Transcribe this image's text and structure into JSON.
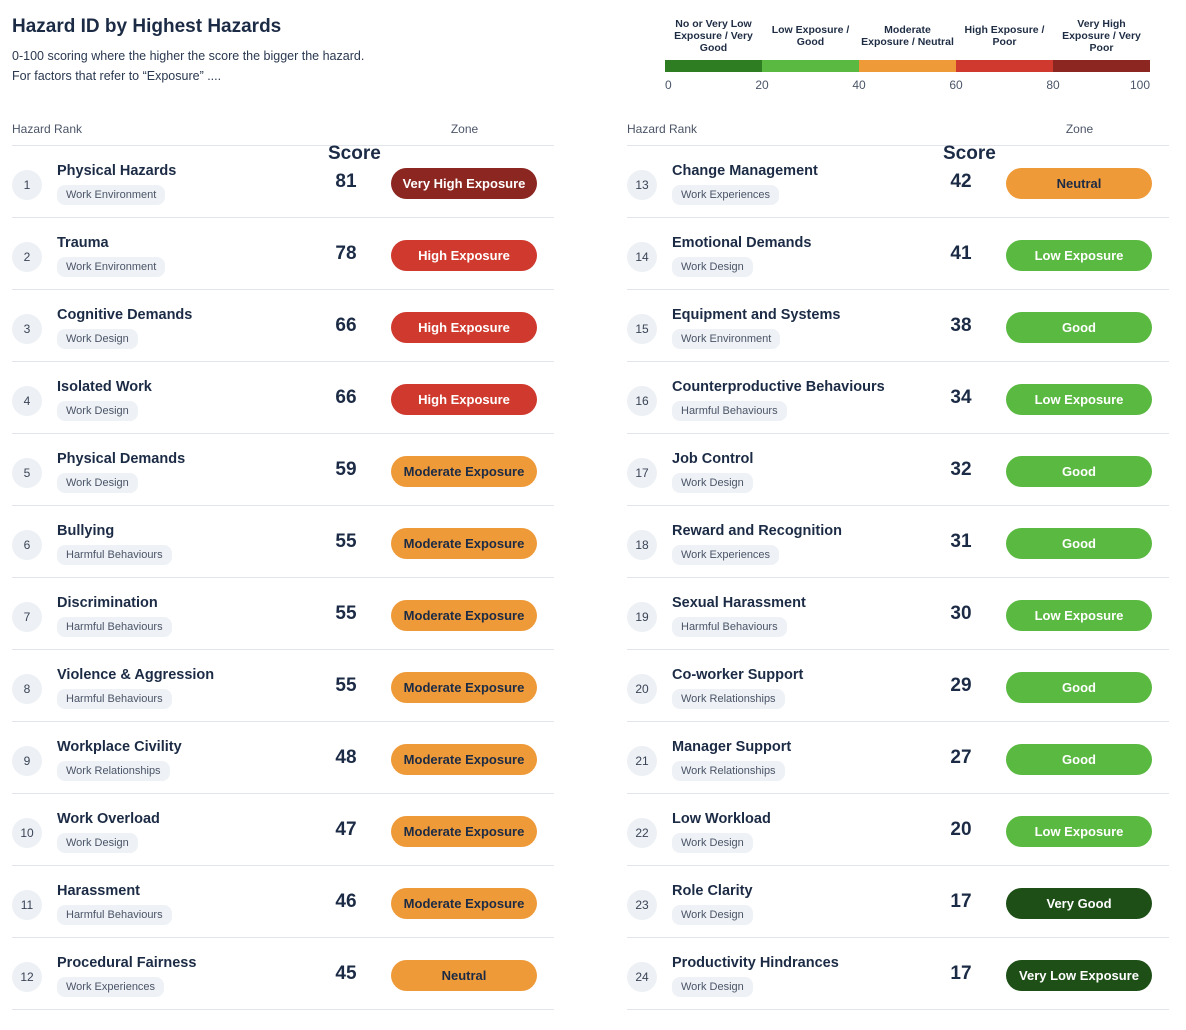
{
  "header": {
    "title": "Hazard ID by Highest Hazards",
    "subtitle_line1": "0-100 scoring where the higher the score the bigger the hazard.",
    "subtitle_line2": "For factors that refer to “Exposure” ...."
  },
  "legend": {
    "labels": [
      "No or Very Low Exposure / Very Good",
      "Low Exposure / Good",
      "Moderate Exposure / Neutral",
      "High Exposure / Poor",
      "Very High Exposure / Very Poor"
    ],
    "colors": [
      "#2e7d22",
      "#5ab941",
      "#ef9a38",
      "#d03a2e",
      "#8b2620"
    ],
    "ticks": [
      "0",
      "20",
      "40",
      "60",
      "80",
      "100"
    ]
  },
  "table_headers": {
    "rank": "Hazard Rank",
    "score": "Score",
    "zone": "Zone"
  },
  "hazards_left": [
    {
      "rank": "1",
      "name": "Physical Hazards",
      "category": "Work Environment",
      "score": "81",
      "zone": "Very High Exposure",
      "zone_key": "veryhigh"
    },
    {
      "rank": "2",
      "name": "Trauma",
      "category": "Work Environment",
      "score": "78",
      "zone": "High Exposure",
      "zone_key": "high"
    },
    {
      "rank": "3",
      "name": "Cognitive Demands",
      "category": "Work Design",
      "score": "66",
      "zone": "High Exposure",
      "zone_key": "high"
    },
    {
      "rank": "4",
      "name": "Isolated Work",
      "category": "Work Design",
      "score": "66",
      "zone": "High Exposure",
      "zone_key": "high"
    },
    {
      "rank": "5",
      "name": "Physical Demands",
      "category": "Work Design",
      "score": "59",
      "zone": "Moderate Exposure",
      "zone_key": "moderate"
    },
    {
      "rank": "6",
      "name": "Bullying",
      "category": "Harmful Behaviours",
      "score": "55",
      "zone": "Moderate Exposure",
      "zone_key": "moderate"
    },
    {
      "rank": "7",
      "name": "Discrimination",
      "category": "Harmful Behaviours",
      "score": "55",
      "zone": "Moderate Exposure",
      "zone_key": "moderate"
    },
    {
      "rank": "8",
      "name": "Violence & Aggression",
      "category": "Harmful Behaviours",
      "score": "55",
      "zone": "Moderate Exposure",
      "zone_key": "moderate"
    },
    {
      "rank": "9",
      "name": "Workplace Civility",
      "category": "Work Relationships",
      "score": "48",
      "zone": "Moderate Exposure",
      "zone_key": "moderate"
    },
    {
      "rank": "10",
      "name": "Work Overload",
      "category": "Work Design",
      "score": "47",
      "zone": "Moderate Exposure",
      "zone_key": "moderate"
    },
    {
      "rank": "11",
      "name": "Harassment",
      "category": "Harmful Behaviours",
      "score": "46",
      "zone": "Moderate Exposure",
      "zone_key": "moderate"
    },
    {
      "rank": "12",
      "name": "Procedural Fairness",
      "category": "Work Experiences",
      "score": "45",
      "zone": "Neutral",
      "zone_key": "neutral"
    }
  ],
  "hazards_right": [
    {
      "rank": "13",
      "name": "Change Management",
      "category": "Work Experiences",
      "score": "42",
      "zone": "Neutral",
      "zone_key": "neutral"
    },
    {
      "rank": "14",
      "name": "Emotional Demands",
      "category": "Work Design",
      "score": "41",
      "zone": "Low Exposure",
      "zone_key": "low"
    },
    {
      "rank": "15",
      "name": "Equipment and Systems",
      "category": "Work Environment",
      "score": "38",
      "zone": "Good",
      "zone_key": "good"
    },
    {
      "rank": "16",
      "name": "Counterproductive Behaviours",
      "category": "Harmful Behaviours",
      "score": "34",
      "zone": "Low Exposure",
      "zone_key": "low"
    },
    {
      "rank": "17",
      "name": "Job Control",
      "category": "Work Design",
      "score": "32",
      "zone": "Good",
      "zone_key": "good"
    },
    {
      "rank": "18",
      "name": "Reward and Recognition",
      "category": "Work Experiences",
      "score": "31",
      "zone": "Good",
      "zone_key": "good"
    },
    {
      "rank": "19",
      "name": "Sexual Harassment",
      "category": "Harmful Behaviours",
      "score": "30",
      "zone": "Low Exposure",
      "zone_key": "low"
    },
    {
      "rank": "20",
      "name": "Co-worker Support",
      "category": "Work Relationships",
      "score": "29",
      "zone": "Good",
      "zone_key": "good"
    },
    {
      "rank": "21",
      "name": "Manager Support",
      "category": "Work Relationships",
      "score": "27",
      "zone": "Good",
      "zone_key": "good"
    },
    {
      "rank": "22",
      "name": "Low Workload",
      "category": "Work Design",
      "score": "20",
      "zone": "Low Exposure",
      "zone_key": "low"
    },
    {
      "rank": "23",
      "name": "Role Clarity",
      "category": "Work Design",
      "score": "17",
      "zone": "Very Good",
      "zone_key": "verygood"
    },
    {
      "rank": "24",
      "name": "Productivity Hindrances",
      "category": "Work Design",
      "score": "17",
      "zone": "Very Low Exposure",
      "zone_key": "verygood"
    }
  ]
}
